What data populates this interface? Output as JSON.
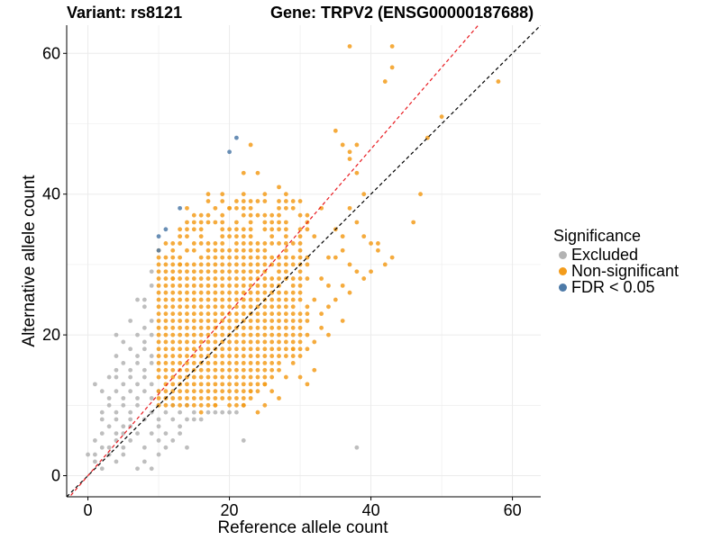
{
  "titles": {
    "variant": "Variant: rs8121",
    "gene": "Gene: TRPV2 (ENSG00000187688)"
  },
  "colors": {
    "excluded": "#b3b3b3",
    "nonsig": "#f39c1b",
    "fdr": "#4d7aa8",
    "diag_black": "#000000",
    "diag_red": "#e8191f"
  },
  "chart_data": {
    "type": "scatter",
    "title": "Variant: rs8121    Gene: TRPV2 (ENSG00000187688)",
    "xlabel": "Reference allele count",
    "ylabel": "Alternative allele count",
    "xlim": [
      -3,
      64
    ],
    "ylim": [
      -3,
      64
    ],
    "xticks": [
      0,
      20,
      40,
      60
    ],
    "yticks": [
      0,
      20,
      40,
      60
    ],
    "legend": {
      "title": "Significance",
      "entries": [
        "Excluded",
        "Non-significant",
        "FDR < 0.05"
      ],
      "placement": "right"
    },
    "reference_lines": [
      {
        "name": "y = x",
        "slope": 1,
        "intercept": 0,
        "style": "dashed",
        "color": "black"
      },
      {
        "name": "fitted",
        "slope": 1.16,
        "intercept": 0,
        "style": "dashed",
        "color": "red"
      }
    ],
    "series": [
      {
        "name": "Excluded",
        "points": [
          [
            0,
            3
          ],
          [
            1,
            3
          ],
          [
            1,
            2
          ],
          [
            2,
            1
          ],
          [
            2,
            4
          ],
          [
            1,
            5
          ],
          [
            1,
            13
          ],
          [
            2,
            6
          ],
          [
            2,
            8
          ],
          [
            2,
            9
          ],
          [
            2,
            12
          ],
          [
            3,
            7
          ],
          [
            3,
            4
          ],
          [
            3,
            3
          ],
          [
            3,
            10
          ],
          [
            3,
            11
          ],
          [
            3,
            14
          ],
          [
            4,
            2
          ],
          [
            4,
            5
          ],
          [
            4,
            6
          ],
          [
            4,
            8
          ],
          [
            4,
            9
          ],
          [
            4,
            12
          ],
          [
            4,
            14
          ],
          [
            4,
            15
          ],
          [
            4,
            17
          ],
          [
            4,
            20
          ],
          [
            5,
            3
          ],
          [
            5,
            4
          ],
          [
            5,
            6
          ],
          [
            5,
            7
          ],
          [
            5,
            10
          ],
          [
            5,
            11
          ],
          [
            5,
            13
          ],
          [
            5,
            16
          ],
          [
            5,
            19
          ],
          [
            6,
            5
          ],
          [
            6,
            7
          ],
          [
            6,
            8
          ],
          [
            6,
            9
          ],
          [
            6,
            12
          ],
          [
            6,
            14
          ],
          [
            6,
            15
          ],
          [
            6,
            18
          ],
          [
            6,
            22
          ],
          [
            7,
            1
          ],
          [
            7,
            6
          ],
          [
            7,
            10
          ],
          [
            7,
            11
          ],
          [
            7,
            13
          ],
          [
            7,
            16
          ],
          [
            7,
            17
          ],
          [
            7,
            20
          ],
          [
            7,
            25
          ],
          [
            8,
            2
          ],
          [
            8,
            4
          ],
          [
            8,
            8
          ],
          [
            8,
            12
          ],
          [
            8,
            14
          ],
          [
            8,
            15
          ],
          [
            8,
            18
          ],
          [
            8,
            19
          ],
          [
            8,
            21
          ],
          [
            8,
            24
          ],
          [
            8,
            25
          ],
          [
            9,
            1
          ],
          [
            9,
            6
          ],
          [
            9,
            9
          ],
          [
            9,
            11
          ],
          [
            9,
            13
          ],
          [
            9,
            16
          ],
          [
            9,
            17
          ],
          [
            9,
            20
          ],
          [
            9,
            22
          ],
          [
            9,
            27
          ],
          [
            9,
            29
          ],
          [
            10,
            3
          ],
          [
            10,
            5
          ],
          [
            10,
            7
          ],
          [
            10,
            8
          ],
          [
            10,
            10
          ],
          [
            10,
            12
          ],
          [
            11,
            4
          ],
          [
            11,
            6
          ],
          [
            11,
            9
          ],
          [
            11,
            11
          ],
          [
            12,
            5
          ],
          [
            12,
            8
          ],
          [
            12,
            10
          ],
          [
            13,
            6
          ],
          [
            13,
            9
          ],
          [
            13,
            7
          ],
          [
            14,
            4
          ],
          [
            14,
            8
          ],
          [
            14,
            10
          ],
          [
            15,
            8
          ],
          [
            15,
            9
          ],
          [
            16,
            8
          ],
          [
            17,
            9
          ],
          [
            18,
            9
          ],
          [
            19,
            9
          ],
          [
            20,
            9
          ],
          [
            21,
            9
          ],
          [
            22,
            10
          ],
          [
            22,
            5
          ],
          [
            38,
            4
          ]
        ]
      },
      {
        "name": "FDR < 0.05",
        "points": [
          [
            10,
            34
          ],
          [
            11,
            35
          ],
          [
            10,
            32
          ],
          [
            13,
            38
          ],
          [
            20,
            46
          ],
          [
            21,
            48
          ]
        ]
      },
      {
        "name": "Non-significant",
        "note": "dense cloud of points (about 10 to 40 on both axes) plus sparse outliers",
        "region": {
          "x": [
            10,
            31
          ],
          "y": [
            10,
            40
          ]
        },
        "points": [
          [
            37,
            61
          ],
          [
            43,
            61
          ],
          [
            43,
            58
          ],
          [
            42,
            56
          ],
          [
            58,
            56
          ],
          [
            50,
            51
          ],
          [
            35,
            49
          ],
          [
            48,
            48
          ],
          [
            36,
            47
          ],
          [
            38,
            47
          ],
          [
            37,
            46
          ],
          [
            23,
            47
          ],
          [
            37,
            45
          ],
          [
            38,
            43
          ],
          [
            39,
            40
          ],
          [
            47,
            40
          ],
          [
            46,
            36
          ],
          [
            33,
            38
          ],
          [
            36,
            34
          ],
          [
            41,
            32
          ],
          [
            43,
            31
          ],
          [
            37,
            30
          ],
          [
            38,
            29
          ],
          [
            39,
            28
          ],
          [
            40,
            29
          ],
          [
            34,
            27
          ],
          [
            36,
            27
          ],
          [
            37,
            26
          ],
          [
            35,
            25
          ],
          [
            36,
            22
          ],
          [
            33,
            21
          ],
          [
            34,
            20
          ],
          [
            32,
            19
          ],
          [
            31,
            18
          ],
          [
            24,
            43
          ],
          [
            22,
            43
          ],
          [
            27,
            41
          ],
          [
            28,
            40
          ],
          [
            17,
            40
          ],
          [
            14,
            38
          ],
          [
            15,
            35
          ],
          [
            16,
            36
          ],
          [
            20,
            38
          ],
          [
            19,
            37
          ],
          [
            13,
            30
          ],
          [
            12,
            28
          ],
          [
            30,
            14
          ],
          [
            31,
            13
          ],
          [
            27,
            11
          ],
          [
            24,
            9
          ],
          [
            25,
            10
          ],
          [
            16,
            9
          ],
          [
            18,
            10
          ],
          [
            22,
            10
          ],
          [
            23,
            12
          ],
          [
            29,
            16
          ],
          [
            30,
            17
          ],
          [
            28,
            14
          ],
          [
            39,
            34
          ],
          [
            40,
            33
          ],
          [
            38,
            36
          ],
          [
            35,
            35
          ],
          [
            37,
            38
          ],
          [
            41,
            33
          ],
          [
            42,
            30
          ],
          [
            25,
            13
          ],
          [
            26,
            12
          ],
          [
            32,
            15
          ],
          [
            29,
            18
          ],
          [
            33,
            23
          ],
          [
            34,
            24
          ],
          [
            32,
            25
          ],
          [
            33,
            28
          ],
          [
            34,
            31
          ],
          [
            35,
            31
          ],
          [
            36,
            32
          ],
          [
            32,
            34
          ],
          [
            31,
            36
          ],
          [
            30,
            37
          ],
          [
            29,
            39
          ]
        ]
      }
    ]
  }
}
